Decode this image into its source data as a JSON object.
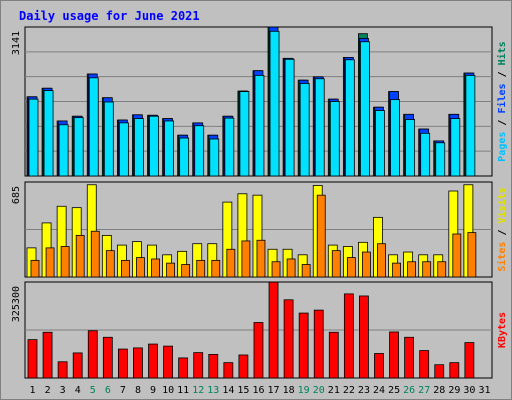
{
  "title": "Daily usage for June 2021",
  "colors": {
    "hits": "#00805c",
    "files": "#0040ff",
    "pages": "#00e0ff",
    "visits": "#ffff00",
    "sites": "#ff8000",
    "kbytes": "#ff0000",
    "weekend_day": "#00805c",
    "weekday": "#000000"
  },
  "right_labels": {
    "top": [
      {
        "text": "Pages",
        "color": "#00c0ff"
      },
      {
        "text": " / ",
        "color": "#000000"
      },
      {
        "text": "Files",
        "color": "#0040ff"
      },
      {
        "text": " / ",
        "color": "#000000"
      },
      {
        "text": "Hits",
        "color": "#00805c"
      }
    ],
    "middle": [
      {
        "text": "Sites",
        "color": "#ff8000"
      },
      {
        "text": " / ",
        "color": "#000000"
      },
      {
        "text": "Visits",
        "color": "#e0e000"
      }
    ],
    "bottom": [
      {
        "text": "KBytes",
        "color": "#ff0000"
      }
    ]
  },
  "chart_data": [
    {
      "type": "bar",
      "panel": "hits",
      "ymax_label": "3141",
      "ylim": [
        0,
        3141
      ],
      "x": [
        1,
        2,
        3,
        4,
        5,
        6,
        7,
        8,
        9,
        10,
        11,
        12,
        13,
        14,
        15,
        16,
        17,
        18,
        19,
        20,
        21,
        22,
        23,
        24,
        25,
        26,
        27,
        28,
        29,
        30,
        31
      ],
      "weekend_days": [
        5,
        6,
        12,
        13,
        19,
        20,
        26,
        27
      ],
      "series": [
        {
          "name": "Hits",
          "values": [
            1670,
            1850,
            1160,
            1260,
            2150,
            1650,
            1180,
            1290,
            1280,
            1210,
            860,
            1120,
            860,
            1260,
            1790,
            2220,
            3140,
            2480,
            2020,
            2090,
            1620,
            2500,
            3000,
            1450,
            1780,
            1300,
            990,
            740,
            1300,
            2170,
            0
          ]
        },
        {
          "name": "Files",
          "values": [
            1670,
            1850,
            1160,
            1260,
            2150,
            1650,
            1180,
            1290,
            1280,
            1210,
            860,
            1120,
            860,
            1260,
            1790,
            2220,
            3140,
            2480,
            2020,
            2090,
            1620,
            2500,
            2900,
            1450,
            1780,
            1300,
            990,
            740,
            1300,
            2170,
            0
          ]
        },
        {
          "name": "Pages",
          "values": [
            1620,
            1800,
            1080,
            1230,
            2070,
            1560,
            1120,
            1210,
            1260,
            1160,
            800,
            1060,
            780,
            1220,
            1780,
            2120,
            3050,
            2460,
            1950,
            2050,
            1570,
            2450,
            2830,
            1380,
            1610,
            1190,
            900,
            700,
            1210,
            2120,
            0
          ]
        }
      ]
    },
    {
      "type": "bar",
      "panel": "visits",
      "ymax_label": "685",
      "ylim": [
        0,
        685
      ],
      "x": [
        1,
        2,
        3,
        4,
        5,
        6,
        7,
        8,
        9,
        10,
        11,
        12,
        13,
        14,
        15,
        16,
        17,
        18,
        19,
        20,
        21,
        22,
        23,
        24,
        25,
        26,
        27,
        28,
        29,
        30,
        31
      ],
      "series": [
        {
          "name": "Visits",
          "values": [
            210,
            390,
            510,
            500,
            665,
            300,
            230,
            255,
            230,
            160,
            185,
            240,
            240,
            540,
            600,
            590,
            200,
            200,
            160,
            660,
            230,
            220,
            250,
            430,
            160,
            180,
            160,
            160,
            620,
            665,
            0
          ]
        },
        {
          "name": "Sites",
          "values": [
            120,
            210,
            220,
            300,
            330,
            190,
            120,
            140,
            130,
            100,
            90,
            120,
            120,
            200,
            260,
            265,
            110,
            130,
            90,
            590,
            190,
            140,
            180,
            240,
            100,
            110,
            110,
            110,
            310,
            320,
            0
          ]
        }
      ]
    },
    {
      "type": "bar",
      "panel": "kbytes",
      "ymax_label": "325300",
      "ylim": [
        0,
        325300
      ],
      "x": [
        1,
        2,
        3,
        4,
        5,
        6,
        7,
        8,
        9,
        10,
        11,
        12,
        13,
        14,
        15,
        16,
        17,
        18,
        19,
        20,
        21,
        22,
        23,
        24,
        25,
        26,
        27,
        28,
        29,
        30,
        31
      ],
      "series": [
        {
          "name": "KBytes",
          "values": [
            130000,
            155000,
            55000,
            85000,
            160000,
            138000,
            98000,
            102000,
            115000,
            108000,
            68000,
            86000,
            80000,
            52000,
            78000,
            188000,
            325000,
            265000,
            220000,
            230000,
            155000,
            285000,
            278000,
            83000,
            156000,
            138000,
            93000,
            45000,
            52000,
            120000,
            0
          ]
        }
      ]
    }
  ]
}
